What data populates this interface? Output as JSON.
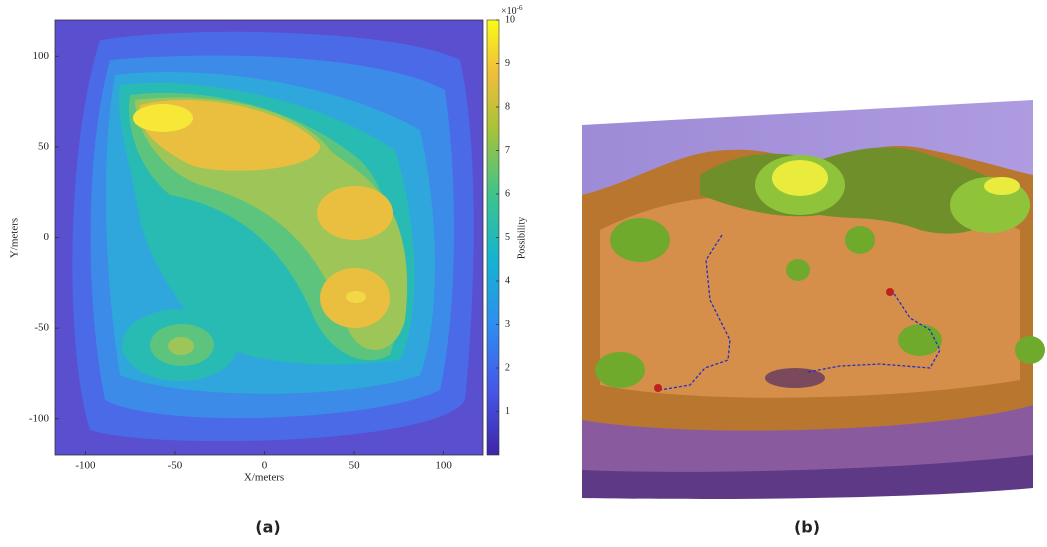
{
  "chart_data": {
    "type": "contour",
    "xlabel": "X/meters",
    "ylabel": "Y/meters",
    "xlim": [
      -117,
      122
    ],
    "ylim": [
      -120,
      120
    ],
    "xticks": [
      -100,
      -50,
      0,
      50,
      100
    ],
    "yticks": [
      -100,
      -50,
      0,
      50,
      100
    ],
    "colorbar": {
      "label": "Possibility",
      "lim": [
        0,
        10
      ],
      "ticks": [
        1,
        2,
        3,
        4,
        5,
        6,
        7,
        8,
        9,
        10
      ],
      "exponent_base": "×10",
      "exponent_power": "-6"
    }
  },
  "captions": [
    "(a)",
    "(b)"
  ]
}
